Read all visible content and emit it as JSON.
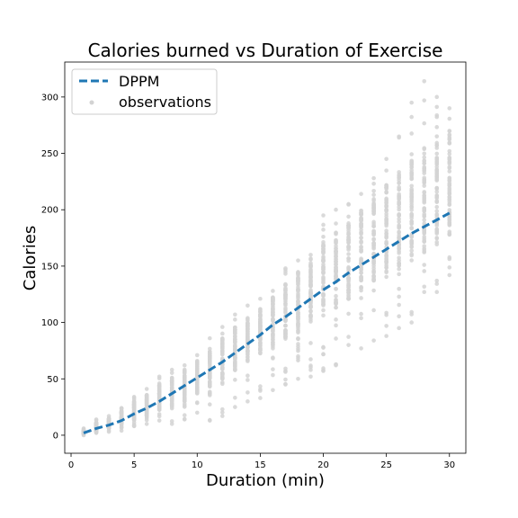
{
  "chart_data": {
    "type": "scatter",
    "title": "Calories burned vs Duration of Exercise",
    "xlabel": "Duration (min)",
    "ylabel": "Calories",
    "xlim": [
      -0.5,
      31.3
    ],
    "ylim": [
      -16,
      331
    ],
    "xticks": [
      0,
      5,
      10,
      15,
      20,
      25,
      30
    ],
    "yticks": [
      0,
      50,
      100,
      150,
      200,
      250,
      300
    ],
    "grid": false,
    "legend_position": "top-left",
    "series": [
      {
        "name": "DPPM",
        "kind": "line",
        "style": "dashed",
        "color": "#1f77b4",
        "x": [
          1,
          2,
          3,
          4,
          5,
          6,
          7,
          8,
          9,
          10,
          11,
          12,
          13,
          14,
          15,
          16,
          17,
          18,
          19,
          20,
          21,
          22,
          23,
          24,
          25,
          26,
          27,
          28,
          29,
          30
        ],
        "y": [
          2,
          6,
          9,
          13,
          19,
          24,
          30,
          37,
          44,
          51,
          58,
          65,
          73,
          81,
          89,
          98,
          105,
          113,
          121,
          129,
          136,
          144,
          151,
          158,
          165,
          172,
          179,
          185,
          191,
          197
        ]
      },
      {
        "name": "observations",
        "kind": "scatter",
        "color": "#d3d3d3",
        "x": [
          1,
          2,
          3,
          4,
          5,
          6,
          7,
          8,
          9,
          10,
          11,
          12,
          13,
          14,
          15,
          16,
          17,
          18,
          19,
          20,
          21,
          22,
          23,
          24,
          25,
          26,
          27,
          28,
          29,
          30
        ],
        "y_min": [
          0,
          2,
          3,
          4,
          8,
          10,
          13,
          10,
          14,
          20,
          13,
          17,
          25,
          30,
          33,
          40,
          45,
          50,
          52,
          57,
          62,
          80,
          77,
          84,
          88,
          95,
          100,
          127,
          127,
          142
        ],
        "y_max": [
          6,
          14,
          17,
          24,
          34,
          41,
          52,
          58,
          62,
          71,
          86,
          96,
          107,
          115,
          121,
          128,
          148,
          155,
          160,
          195,
          200,
          205,
          214,
          228,
          245,
          265,
          295,
          314,
          300,
          290
        ],
        "y_typical_low": [
          1,
          3,
          6,
          10,
          13,
          17,
          22,
          25,
          30,
          37,
          43,
          50,
          57,
          65,
          72,
          80,
          85,
          92,
          100,
          108,
          113,
          120,
          128,
          135,
          140,
          148,
          155,
          162,
          168,
          175
        ],
        "y_typical_high": [
          4,
          11,
          15,
          22,
          30,
          37,
          45,
          52,
          58,
          66,
          77,
          86,
          96,
          104,
          112,
          122,
          135,
          145,
          152,
          170,
          180,
          190,
          200,
          210,
          222,
          235,
          245,
          255,
          262,
          270
        ]
      }
    ]
  }
}
